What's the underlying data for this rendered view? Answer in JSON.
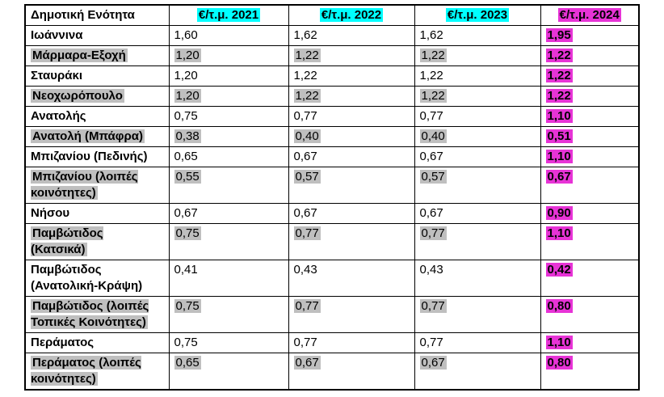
{
  "table": {
    "header": {
      "name_label": "Δημοτική Ενότητα",
      "year_columns": [
        {
          "label": "€/τ.μ. 2021",
          "highlight": "cyan"
        },
        {
          "label": "€/τ.μ. 2022",
          "highlight": "cyan"
        },
        {
          "label": "€/τ.μ. 2023",
          "highlight": "cyan"
        },
        {
          "label": "€/τ.μ. 2024",
          "highlight": "magenta"
        }
      ]
    },
    "rows": [
      {
        "name": "Ιωάννινα",
        "gray": false,
        "values": [
          "1,60",
          "1,62",
          "1,62"
        ],
        "value_2024": "1,95"
      },
      {
        "name": "Μάρμαρα-Εξοχή",
        "gray": true,
        "values": [
          "1,20",
          "1,22",
          "1,22"
        ],
        "value_2024": "1,22"
      },
      {
        "name": "Σταυράκι",
        "gray": false,
        "values": [
          "1,20",
          "1,22",
          "1,22"
        ],
        "value_2024": "1,22"
      },
      {
        "name": "Νεοχωρόπουλο",
        "gray": true,
        "values": [
          "1,20",
          "1,22",
          "1,22"
        ],
        "value_2024": "1,22"
      },
      {
        "name": "Ανατολής",
        "gray": false,
        "values": [
          "0,75",
          "0,77",
          "0,77"
        ],
        "value_2024": "1,10"
      },
      {
        "name": "Ανατολή (Μπάφρα)",
        "gray": true,
        "values": [
          "0,38",
          "0,40",
          "0,40"
        ],
        "value_2024": "0,51"
      },
      {
        "name": "Μπιζανίου (Πεδινής)",
        "gray": false,
        "values": [
          "0,65",
          "0,67",
          "0,67"
        ],
        "value_2024": "1,10"
      },
      {
        "name": "Μπιζανίου (λοιπές\nκοινότητες)",
        "gray": true,
        "values": [
          "0,55",
          "0,57",
          "0,57"
        ],
        "value_2024": "0,67"
      },
      {
        "name": "Νήσου",
        "gray": false,
        "values": [
          "0,67",
          "0,67",
          "0,67"
        ],
        "value_2024": "0,90"
      },
      {
        "name": "Παμβώτιδος\n(Κατσικά)",
        "gray": true,
        "values": [
          "0,75",
          "0,77",
          "0,77"
        ],
        "value_2024": "1,10"
      },
      {
        "name": "Παμβώτιδος\n(Ανατολική-Κράψη)",
        "gray": false,
        "values": [
          "0,41",
          "0,43",
          "0,43"
        ],
        "value_2024": "0,42"
      },
      {
        "name": "Παμβώτιδος (λοιπές\nΤοπικές Κοινότητες)",
        "gray": true,
        "values": [
          "0,75",
          "0,77",
          "0,77"
        ],
        "value_2024": "0,80"
      },
      {
        "name": "Περάματος",
        "gray": false,
        "values": [
          "0,75",
          "0,77",
          "0,77"
        ],
        "value_2024": "1,10"
      },
      {
        "name": "Περάματος (λοιπές\nκοινότητες)",
        "gray": true,
        "values": [
          "0,65",
          "0,67",
          "0,67"
        ],
        "value_2024": "0,80"
      }
    ]
  },
  "colors": {
    "cyan_highlight": "#00ffff",
    "magenta_highlight": "#e733d6",
    "gray_highlight": "#bfbfbf",
    "border": "#000000",
    "background": "#ffffff"
  }
}
